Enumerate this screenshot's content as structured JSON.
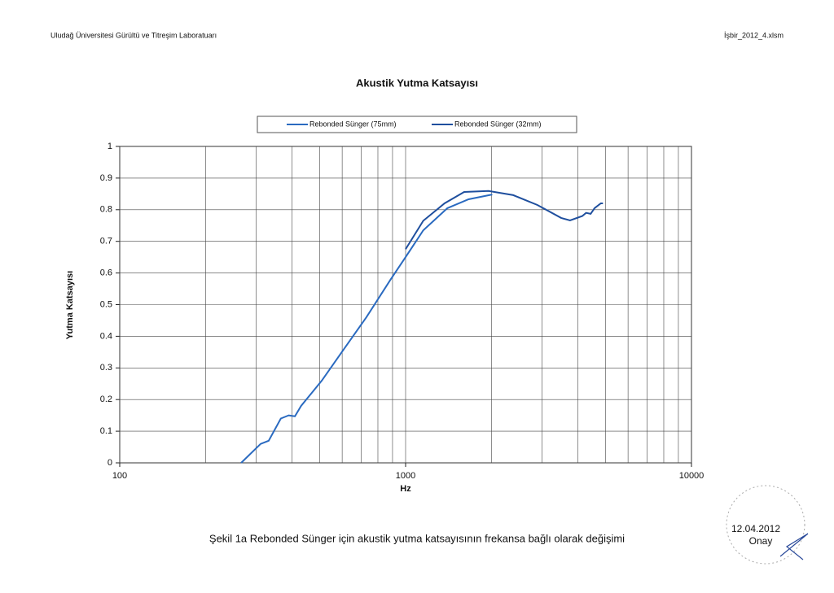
{
  "header": {
    "left": "Uludağ Üniversitesi Gürültü ve Titreşim Laboratuarı",
    "right": "İşbir_2012_4.xlsm"
  },
  "chart_data": {
    "type": "line",
    "title": "Akustik Yutma Katsayısı",
    "x_label": "Hz",
    "y_label": "Yutma Katsayısı",
    "xscale": "log",
    "xlim": [
      100,
      10000
    ],
    "xticks": [
      100,
      1000,
      10000
    ],
    "xgrid_minor": [
      200,
      300,
      400,
      500,
      600,
      700,
      800,
      900,
      2000,
      3000,
      4000,
      5000,
      6000,
      7000,
      8000,
      9000
    ],
    "ylim": [
      0,
      1
    ],
    "yticks": [
      0,
      0.1,
      0.2,
      0.3,
      0.4,
      0.5,
      0.6,
      0.7,
      0.8,
      0.9,
      1
    ],
    "grid": true,
    "legend": "top",
    "series": [
      {
        "name": "Rebonded Sünger (75mm)",
        "color": "#2a6ac0",
        "x": [
          266,
          311,
          332,
          366,
          390,
          410,
          431,
          509,
          598,
          729,
          887,
          1000,
          1153,
          1400,
          1660,
          2010
        ],
        "values": [
          0,
          0.06,
          0.07,
          0.14,
          0.15,
          0.147,
          0.18,
          0.26,
          0.35,
          0.46,
          0.58,
          0.65,
          0.735,
          0.805,
          0.833,
          0.848
        ]
      },
      {
        "name": "Rebonded Sünger (32mm)",
        "color": "#1f4f9e",
        "x": [
          1000,
          1153,
          1368,
          1603,
          1950,
          2380,
          2890,
          3500,
          3760,
          4150,
          4280,
          4440,
          4580,
          4820,
          4900
        ],
        "values": [
          0.675,
          0.765,
          0.82,
          0.856,
          0.859,
          0.846,
          0.815,
          0.774,
          0.766,
          0.78,
          0.79,
          0.787,
          0.805,
          0.82,
          0.82
        ]
      }
    ]
  },
  "caption": "Şekil 1a Rebonded Sünger için akustik yutma katsayısının frekansa bağlı olarak değişimi",
  "stamp": {
    "date": "12.04.2012",
    "label": "Onay"
  }
}
